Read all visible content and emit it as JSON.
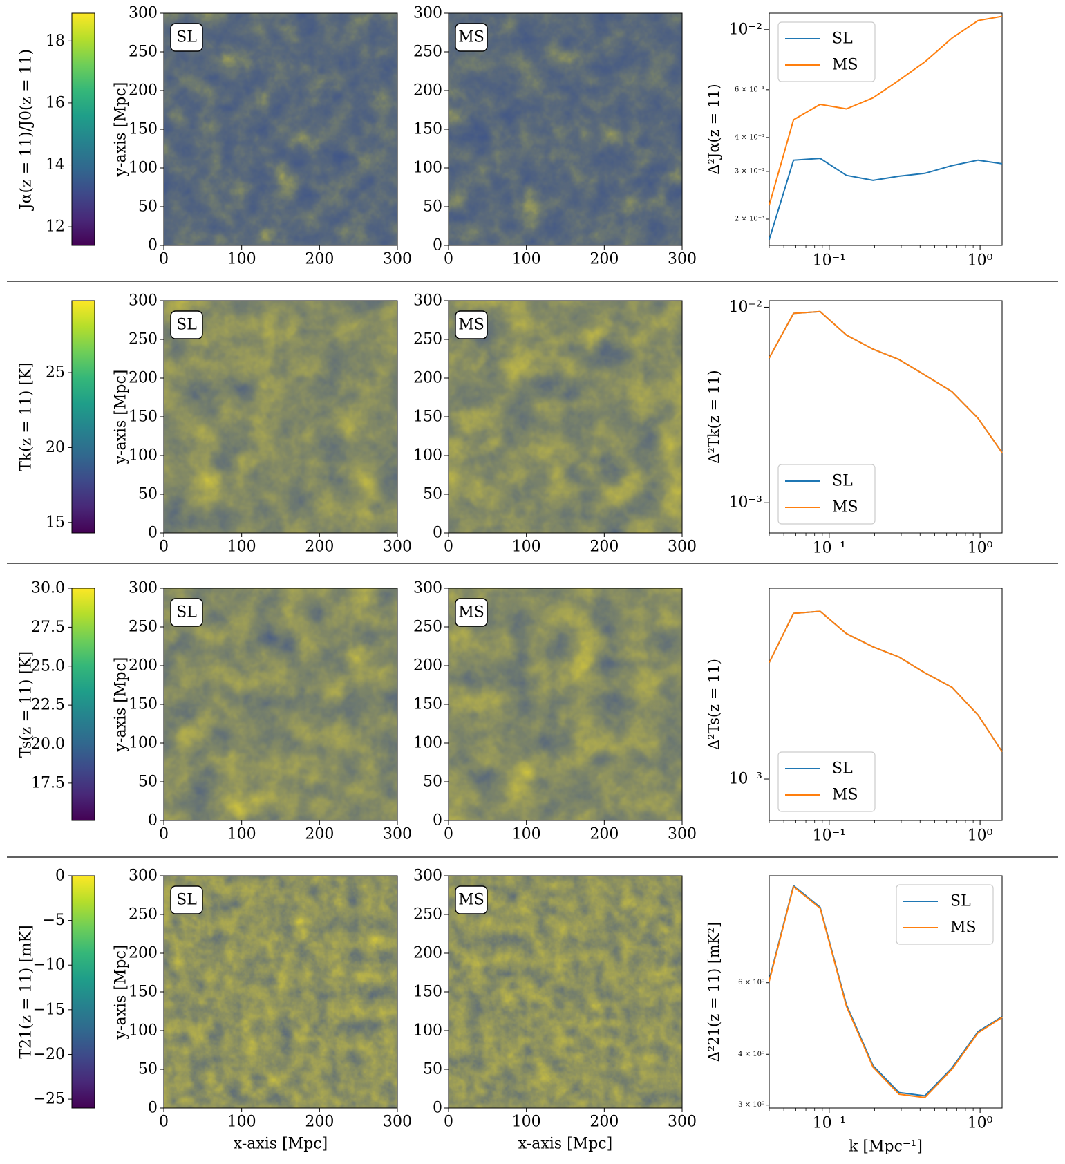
{
  "colormap": [
    "#440154",
    "#482878",
    "#3e4989",
    "#31688e",
    "#26828e",
    "#1f9e89",
    "#35b779",
    "#6ece58",
    "#b5de2b",
    "#fde725"
  ],
  "colors": {
    "SL": "#1f77b4",
    "MS": "#ff7f0e",
    "rule": "#000000"
  },
  "maps": {
    "panel_labels": [
      "SL",
      "MS"
    ],
    "xlabel": "x-axis [Mpc]",
    "ylabel": "y-axis [Mpc]",
    "ticks": [
      "0",
      "50",
      "100",
      "150",
      "200",
      "250",
      "300"
    ],
    "xticks": [
      "0",
      "100",
      "200",
      "300"
    ],
    "extent": [
      0,
      300
    ]
  },
  "rows": [
    {
      "colorbar_label": "Jα(z = 11)/J0(z = 11)",
      "colorbar_ticks": [
        "12",
        "14",
        "16",
        "18"
      ],
      "colorbar_values": [
        12,
        14,
        16,
        18
      ],
      "colorbar_range": [
        11.4,
        18.9
      ],
      "ps_ylabel": "Δ²Jα(z = 11)",
      "ps_ticks": [
        {
          "label": "10⁻²",
          "value": 0.01,
          "size": "big"
        },
        {
          "label": "6 × 10⁻³",
          "value": 0.006,
          "size": "small"
        },
        {
          "label": "4 × 10⁻³",
          "value": 0.004,
          "size": "small"
        },
        {
          "label": "3 × 10⁻³",
          "value": 0.003,
          "size": "small"
        },
        {
          "label": "2 × 10⁻³",
          "value": 0.002,
          "size": "small"
        }
      ],
      "legend_position": "top-left"
    },
    {
      "colorbar_label": "Tk(z = 11) [K]",
      "colorbar_ticks": [
        "15",
        "20",
        "25"
      ],
      "colorbar_values": [
        15,
        20,
        25
      ],
      "colorbar_range": [
        14.3,
        29.8
      ],
      "ps_ylabel": "Δ²Tk(z = 11)",
      "ps_ticks": [
        {
          "label": "10⁻²",
          "value": 0.01,
          "size": "big"
        },
        {
          "label": "10⁻³",
          "value": 0.001,
          "size": "big"
        }
      ],
      "legend_position": "bottom-left"
    },
    {
      "colorbar_label": "Ts(z = 11) [K]",
      "colorbar_ticks": [
        "17.5",
        "20.0",
        "22.5",
        "25.0",
        "27.5",
        "30.0"
      ],
      "colorbar_values": [
        17.5,
        20.0,
        22.5,
        25.0,
        27.5,
        30.0
      ],
      "colorbar_range": [
        15.1,
        30.0
      ],
      "ps_ylabel": "Δ²Ts(z = 11)",
      "ps_ticks": [
        {
          "label": "10⁻³",
          "value": 0.001,
          "size": "big"
        }
      ],
      "legend_position": "bottom-left"
    },
    {
      "colorbar_label": "T21(z = 11) [mK]",
      "colorbar_ticks": [
        "0",
        "−5",
        "−10",
        "−15",
        "−20",
        "−25"
      ],
      "colorbar_values": [
        0,
        -5,
        -10,
        -15,
        -20,
        -25
      ],
      "colorbar_range": [
        -26,
        0
      ],
      "ps_ylabel": "Δ²21(z = 11) [mK²]",
      "ps_ticks": [
        {
          "label": "6 × 10⁰",
          "value": 6,
          "size": "small"
        },
        {
          "label": "4 × 10⁰",
          "value": 4,
          "size": "small"
        },
        {
          "label": "3 × 10⁰",
          "value": 3,
          "size": "small"
        }
      ],
      "legend_position": "top-right"
    }
  ],
  "chart_data": [
    {
      "type": "line",
      "title": "",
      "xscale": "log",
      "yscale": "log",
      "xlim": [
        0.04,
        1.4
      ],
      "ylim": [
        0.0016,
        0.0115
      ],
      "xticks": [
        {
          "label": "10⁻¹",
          "value": 0.1
        },
        {
          "label": "10⁰",
          "value": 1.0
        }
      ],
      "xlabel": "",
      "ylabel": "Δ²Jα(z = 11)",
      "x": [
        0.04,
        0.058,
        0.087,
        0.13,
        0.195,
        0.29,
        0.43,
        0.65,
        0.97,
        1.4
      ],
      "series": [
        {
          "name": "SL",
          "values": [
            0.00168,
            0.0033,
            0.00335,
            0.0029,
            0.00278,
            0.00288,
            0.00295,
            0.00315,
            0.0033,
            0.0032
          ]
        },
        {
          "name": "MS",
          "values": [
            0.00225,
            0.00465,
            0.0053,
            0.0051,
            0.0056,
            0.0065,
            0.0076,
            0.0093,
            0.0108,
            0.0112
          ]
        }
      ]
    },
    {
      "type": "line",
      "title": "",
      "xscale": "log",
      "yscale": "log",
      "xlim": [
        0.04,
        1.4
      ],
      "ylim": [
        0.0007,
        0.0108
      ],
      "xticks": [
        {
          "label": "10⁻¹",
          "value": 0.1
        },
        {
          "label": "10⁰",
          "value": 1.0
        }
      ],
      "xlabel": "",
      "ylabel": "Δ²Tk(z = 11)",
      "x": [
        0.04,
        0.058,
        0.087,
        0.13,
        0.195,
        0.29,
        0.43,
        0.65,
        0.97,
        1.4
      ],
      "series": [
        {
          "name": "SL",
          "values": [
            0.0055,
            0.0093,
            0.0095,
            0.0072,
            0.0061,
            0.0054,
            0.0045,
            0.0037,
            0.0027,
            0.0018
          ]
        },
        {
          "name": "MS",
          "values": [
            0.0055,
            0.0093,
            0.0095,
            0.0072,
            0.0061,
            0.0054,
            0.0045,
            0.0037,
            0.0027,
            0.0018
          ]
        }
      ]
    },
    {
      "type": "line",
      "title": "",
      "xscale": "log",
      "yscale": "log",
      "xlim": [
        0.04,
        1.4
      ],
      "ylim": [
        0.0006,
        0.0105
      ],
      "xticks": [
        {
          "label": "10⁻¹",
          "value": 0.1
        },
        {
          "label": "10⁰",
          "value": 1.0
        }
      ],
      "xlabel": "",
      "ylabel": "Δ²Ts(z = 11)",
      "x": [
        0.04,
        0.058,
        0.087,
        0.13,
        0.195,
        0.29,
        0.43,
        0.65,
        0.97,
        1.4
      ],
      "series": [
        {
          "name": "SL",
          "values": [
            0.0042,
            0.0077,
            0.0079,
            0.006,
            0.0051,
            0.0045,
            0.0037,
            0.0031,
            0.0022,
            0.0014
          ]
        },
        {
          "name": "MS",
          "values": [
            0.0042,
            0.0077,
            0.0079,
            0.006,
            0.0051,
            0.0045,
            0.0037,
            0.0031,
            0.0022,
            0.0014
          ]
        }
      ]
    },
    {
      "type": "line",
      "title": "",
      "xscale": "log",
      "yscale": "log",
      "xlim": [
        0.04,
        1.4
      ],
      "ylim": [
        2.95,
        11.0
      ],
      "xticks": [
        {
          "label": "10⁻¹",
          "value": 0.1
        },
        {
          "label": "10⁰",
          "value": 1.0
        }
      ],
      "xlabel": "k [Mpc⁻¹]",
      "ylabel": "Δ²21(z = 11) [mK²]",
      "x": [
        0.04,
        0.058,
        0.087,
        0.13,
        0.195,
        0.29,
        0.43,
        0.65,
        0.97,
        1.4
      ],
      "series": [
        {
          "name": "SL",
          "values": [
            6.1,
            10.4,
            9.2,
            5.3,
            3.75,
            3.22,
            3.16,
            3.7,
            4.55,
            4.95
          ]
        },
        {
          "name": "MS",
          "values": [
            6.05,
            10.35,
            9.15,
            5.25,
            3.72,
            3.19,
            3.13,
            3.67,
            4.52,
            4.93
          ]
        }
      ]
    }
  ]
}
